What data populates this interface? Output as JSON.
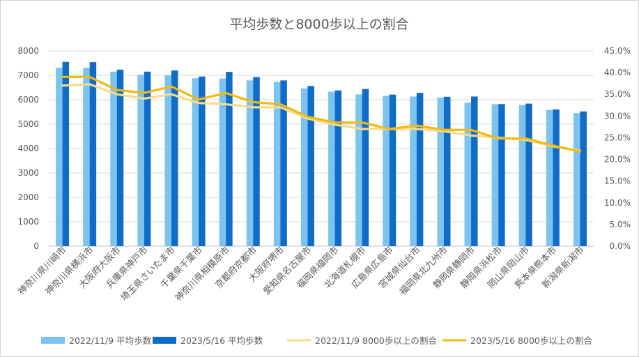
{
  "chart_data": {
    "type": "bar",
    "title": "平均歩数と8000歩以上の割合",
    "categories": [
      "神奈川県川崎市",
      "神奈川県横浜市",
      "大阪府大阪市",
      "兵庫県神戸市",
      "埼玉県さいたま市",
      "千葉県千葉市",
      "神奈川県相模原市",
      "京都府京都市",
      "大阪府堺市",
      "愛知県名古屋市",
      "福岡県福岡市",
      "北海道札幌市",
      "広島県広島市",
      "宮城県仙台市",
      "福岡県北九州市",
      "静岡県静岡市",
      "静岡県浜松市",
      "岡山県岡山市",
      "熊本県熊本市",
      "新潟県新潟市"
    ],
    "y_left": {
      "ticks": [
        "0",
        "1000",
        "2000",
        "3000",
        "4000",
        "5000",
        "6000",
        "7000",
        "8000"
      ],
      "ylim": [
        0,
        8000
      ]
    },
    "y_right": {
      "ticks": [
        "0.0%",
        "5.0%",
        "10.0%",
        "15.0%",
        "20.0%",
        "25.0%",
        "30.0%",
        "35.0%",
        "40.0%",
        "45.0%"
      ],
      "ylim": [
        0,
        45
      ]
    },
    "grid": true,
    "legend_position": "bottom",
    "series": [
      {
        "name": "2022/11/9 平均歩数",
        "kind": "bar",
        "axis": "left",
        "color": "#7cc3f2",
        "values": [
          7310,
          7310,
          7150,
          7020,
          7000,
          6880,
          6870,
          6790,
          6730,
          6460,
          6330,
          6220,
          6160,
          6130,
          6090,
          5880,
          5820,
          5780,
          5580,
          5450
        ]
      },
      {
        "name": "2023/5/16 平均歩数",
        "kind": "bar",
        "axis": "left",
        "color": "#0f6cc8",
        "values": [
          7550,
          7540,
          7230,
          7150,
          7200,
          6950,
          7140,
          6930,
          6790,
          6560,
          6380,
          6440,
          6210,
          6280,
          6120,
          6130,
          5820,
          5840,
          5600,
          5520
        ]
      },
      {
        "name": "2022/11/9 8000歩以上の割合",
        "kind": "line",
        "axis": "right",
        "color": "#f5dc8a",
        "values": [
          37.0,
          37.3,
          35.0,
          34.0,
          35.0,
          33.0,
          32.7,
          32.0,
          32.0,
          29.4,
          28.0,
          27.0,
          27.0,
          27.0,
          26.5,
          25.5,
          25.0,
          24.5,
          23.0,
          22.0
        ]
      },
      {
        "name": "2023/5/16 8000歩以上の割合",
        "kind": "line",
        "axis": "right",
        "color": "#f2b90f",
        "values": [
          39.0,
          39.0,
          36.0,
          35.3,
          36.8,
          33.8,
          35.3,
          33.2,
          32.7,
          29.8,
          28.5,
          28.5,
          27.0,
          27.8,
          26.8,
          26.8,
          24.8,
          24.8,
          23.2,
          21.8
        ]
      }
    ]
  }
}
